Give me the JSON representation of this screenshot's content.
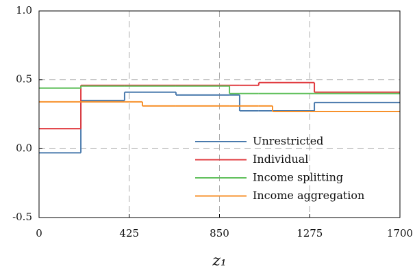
{
  "chart_data": {
    "type": "line",
    "step": "post",
    "x_label": "z₁",
    "x": [
      0,
      197,
      403,
      487,
      645,
      897,
      945,
      1035,
      1100,
      1297,
      1700
    ],
    "series": [
      {
        "name": "Unrestricted",
        "color": "#4a7aad",
        "values": [
          -0.03,
          0.35,
          0.41,
          0.41,
          0.39,
          0.39,
          0.275,
          0.275,
          0.275,
          0.335,
          0.335
        ]
      },
      {
        "name": "Individual",
        "color": "#e0393e",
        "values": [
          0.145,
          0.46,
          0.46,
          0.46,
          0.46,
          0.46,
          0.46,
          0.48,
          0.48,
          0.41,
          0.41
        ]
      },
      {
        "name": "Income splitting",
        "color": "#5fbf5a",
        "values": [
          0.44,
          0.455,
          0.455,
          0.455,
          0.455,
          0.4,
          0.4,
          0.4,
          0.4,
          0.4,
          0.4
        ]
      },
      {
        "name": "Income aggregation",
        "color": "#f7912b",
        "values": [
          0.34,
          0.34,
          0.34,
          0.31,
          0.31,
          0.31,
          0.31,
          0.31,
          0.27,
          0.27,
          0.27
        ]
      }
    ],
    "xlim": [
      0,
      1700
    ],
    "xticks": [
      0,
      425,
      850,
      1275,
      1700
    ],
    "ylim": [
      -0.5,
      1.0
    ],
    "yticks": [
      {
        "value": -0.5,
        "label": "-0.5"
      },
      {
        "value": 0,
        "label": "0.0"
      },
      {
        "value": 0.5,
        "label": "0.5"
      },
      {
        "value": 1.0,
        "label": "1.0"
      }
    ],
    "grid": true,
    "legend": "lower right"
  }
}
